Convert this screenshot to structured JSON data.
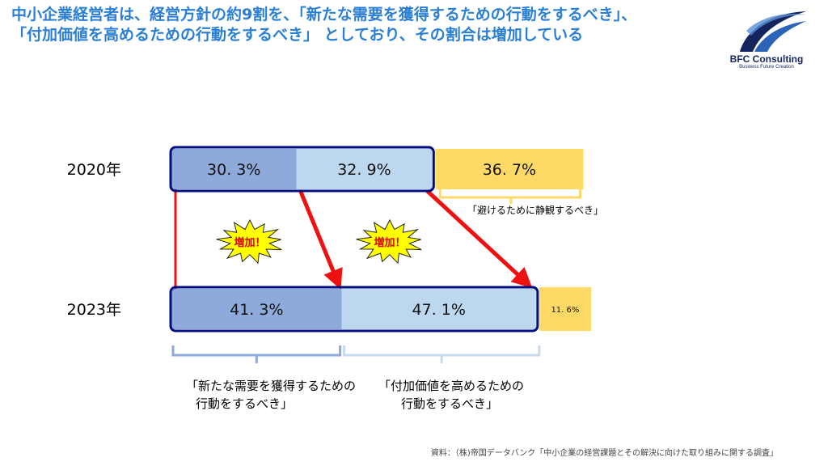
{
  "title_lines": [
    "中小企業経営者は、経営方針の約9割を、「新たな需要を獲得するための行動をするべき」、",
    "「付加価値を高めるための行動をするべき」 としており、その割合は増加している"
  ],
  "logo": {
    "name": "BFC Consulting",
    "tagline": "Business Future Creation"
  },
  "colors": {
    "title": "#2a7fd4",
    "new_demand": "#8eaadb",
    "value_add": "#bdd7ee",
    "wait": "#ffd966",
    "frame": "#000e80",
    "arrow": "#ee1111",
    "burst_fill": "#ffff00",
    "burst_text": "#dd0000",
    "bracket_dark": "#8eaadb",
    "bracket_light": "#c5d9f1"
  },
  "chart_data": {
    "type": "bar",
    "orientation": "horizontal",
    "stacked": true,
    "categories": [
      "2020年",
      "2023年"
    ],
    "series": [
      {
        "name": "「新たな需要を獲得するための行動をするべき」",
        "values": [
          30.3,
          41.3
        ],
        "labels": [
          "30. 3%",
          "41. 3%"
        ]
      },
      {
        "name": "「付加価値を高めるための行動をするべき」",
        "values": [
          32.9,
          47.1
        ],
        "labels": [
          "32. 9%",
          "47. 1%"
        ]
      },
      {
        "name": "「避けるために静観するべき」",
        "values": [
          36.7,
          11.6
        ],
        "labels": [
          "36. 7%",
          "11. 6%"
        ]
      }
    ],
    "annotations": [
      "増加！",
      "増加！"
    ],
    "source": "資料：（株)帝国データバンク「中小企業の経営課題とその解決に向けた取り組みに関する調査」"
  }
}
